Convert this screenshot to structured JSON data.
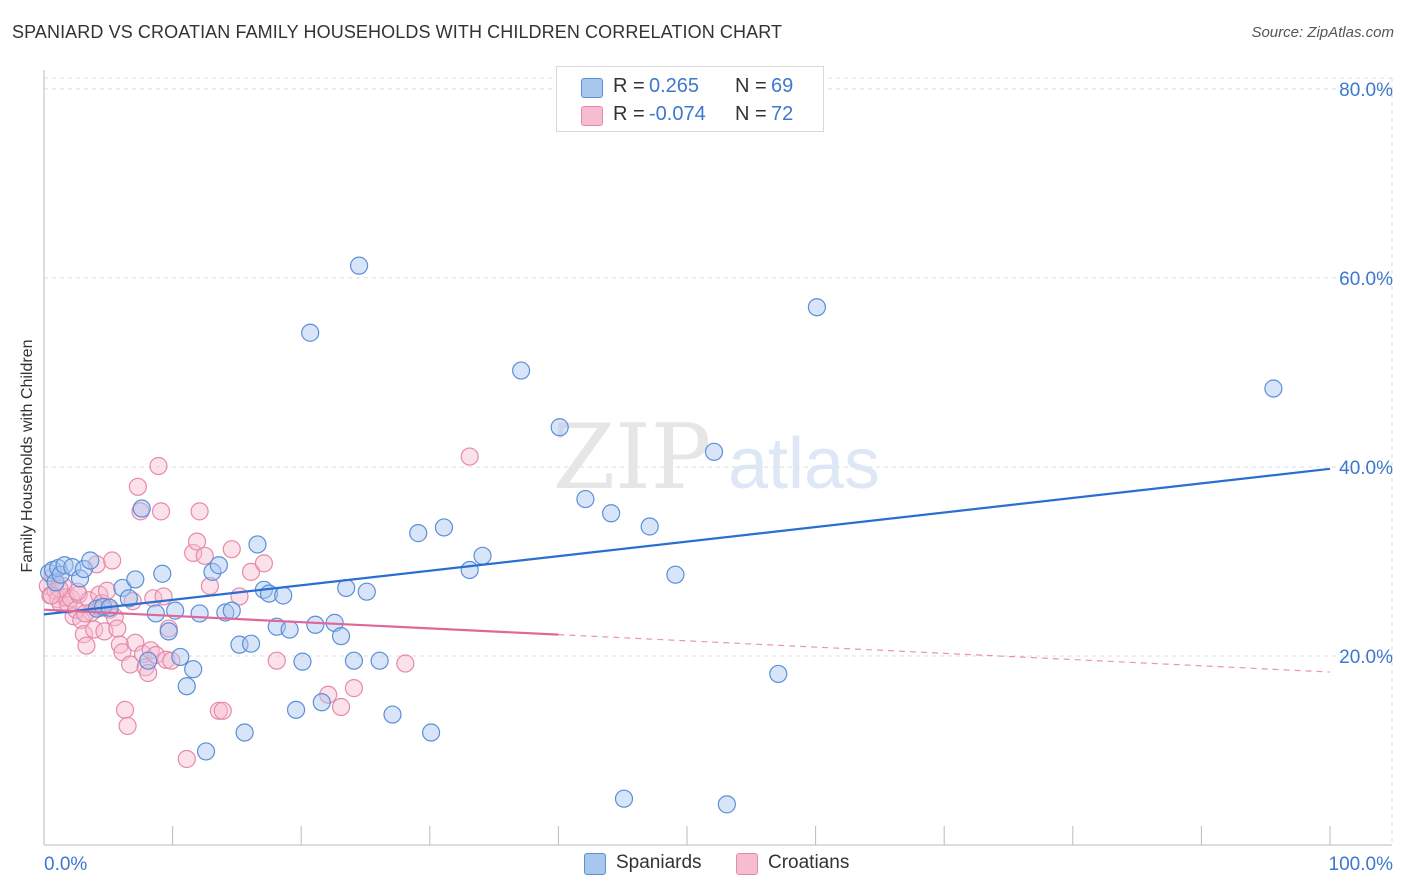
{
  "title": "SPANIARD VS CROATIAN FAMILY HOUSEHOLDS WITH CHILDREN CORRELATION CHART",
  "source": "Source: ZipAtlas.com",
  "watermark": {
    "zip": "ZIP",
    "atlas": "atlas"
  },
  "colors": {
    "blue_fill": "#a9c6ef",
    "blue_stroke": "#5b8fd8",
    "blue_line": "#2a6fd0",
    "pink_fill": "#f6bdd0",
    "pink_stroke": "#e68aac",
    "pink_line": "#e0679a",
    "axis_text": "#3c78d0",
    "grid": "#dddddd"
  },
  "legend_top": [
    {
      "r_label": "R =",
      "r_value": "0.265",
      "n_label": "N =",
      "n_value": "69"
    },
    {
      "r_label": "R =",
      "r_value": "-0.074",
      "n_label": "N =",
      "n_value": "72"
    }
  ],
  "legend_bottom": [
    "Spaniards",
    "Croatians"
  ],
  "chart_data": {
    "type": "scatter",
    "title": "SPANIARD VS CROATIAN FAMILY HOUSEHOLDS WITH CHILDREN CORRELATION CHART",
    "xlabel": "",
    "ylabel": "Family Households with Children",
    "xlim": [
      0,
      100
    ],
    "ylim": [
      0,
      82
    ],
    "x_tick_labels": [
      "0.0%",
      "100.0%"
    ],
    "y_ticks": [
      20,
      40,
      60,
      80
    ],
    "y_tick_labels": [
      "20.0%",
      "40.0%",
      "60.0%",
      "80.0%"
    ],
    "grid": true,
    "series": [
      {
        "name": "Spaniards",
        "R": 0.265,
        "N": 69,
        "trend": {
          "x0": 0,
          "y0": 24.4,
          "x1": 100,
          "y1": 39.8,
          "solid_to": 100
        },
        "points": [
          [
            0.4,
            28.8
          ],
          [
            0.7,
            29.1
          ],
          [
            0.9,
            27.8
          ],
          [
            1.1,
            29.3
          ],
          [
            1.3,
            28.6
          ],
          [
            1.6,
            29.6
          ],
          [
            2.2,
            29.4
          ],
          [
            2.8,
            28.2
          ],
          [
            3.1,
            29.2
          ],
          [
            3.6,
            30.1
          ],
          [
            4.1,
            25.0
          ],
          [
            4.6,
            25.2
          ],
          [
            5.1,
            25.1
          ],
          [
            6.1,
            27.2
          ],
          [
            6.6,
            26.1
          ],
          [
            7.1,
            28.1
          ],
          [
            7.6,
            35.6
          ],
          [
            8.1,
            19.5
          ],
          [
            8.7,
            24.5
          ],
          [
            9.2,
            28.7
          ],
          [
            9.7,
            22.6
          ],
          [
            10.2,
            24.8
          ],
          [
            10.6,
            19.9
          ],
          [
            11.1,
            16.8
          ],
          [
            11.6,
            18.6
          ],
          [
            12.1,
            24.5
          ],
          [
            12.6,
            9.9
          ],
          [
            13.1,
            28.9
          ],
          [
            13.6,
            29.6
          ],
          [
            14.1,
            24.6
          ],
          [
            14.6,
            24.8
          ],
          [
            15.2,
            21.2
          ],
          [
            15.6,
            11.9
          ],
          [
            16.1,
            21.3
          ],
          [
            16.6,
            31.8
          ],
          [
            17.1,
            27.0
          ],
          [
            17.5,
            26.6
          ],
          [
            18.1,
            23.1
          ],
          [
            18.6,
            26.4
          ],
          [
            19.1,
            22.8
          ],
          [
            19.6,
            14.3
          ],
          [
            20.1,
            19.4
          ],
          [
            20.7,
            54.2
          ],
          [
            21.1,
            23.3
          ],
          [
            21.6,
            15.1
          ],
          [
            22.6,
            23.5
          ],
          [
            23.1,
            22.1
          ],
          [
            23.5,
            27.2
          ],
          [
            24.1,
            19.5
          ],
          [
            24.5,
            61.3
          ],
          [
            25.1,
            26.8
          ],
          [
            26.1,
            19.5
          ],
          [
            27.1,
            13.8
          ],
          [
            29.1,
            33.0
          ],
          [
            30.1,
            11.9
          ],
          [
            31.1,
            33.6
          ],
          [
            33.1,
            29.1
          ],
          [
            34.1,
            30.6
          ],
          [
            37.1,
            50.2
          ],
          [
            40.1,
            44.2
          ],
          [
            42.1,
            36.6
          ],
          [
            44.1,
            35.1
          ],
          [
            45.1,
            4.9
          ],
          [
            47.1,
            33.7
          ],
          [
            49.1,
            28.6
          ],
          [
            52.1,
            41.6
          ],
          [
            53.1,
            4.3
          ],
          [
            57.1,
            18.1
          ],
          [
            60.1,
            56.9
          ],
          [
            95.6,
            48.3
          ]
        ]
      },
      {
        "name": "Croatians",
        "R": -0.074,
        "N": 72,
        "trend": {
          "x0": 0,
          "y0": 24.9,
          "x1": 100,
          "y1": 18.3,
          "solid_to": 40
        },
        "points": [
          [
            0.3,
            27.4
          ],
          [
            0.5,
            26.4
          ],
          [
            0.7,
            28.4
          ],
          [
            0.9,
            26.9
          ],
          [
            1.1,
            26.0
          ],
          [
            1.3,
            25.5
          ],
          [
            1.5,
            27.4
          ],
          [
            1.7,
            26.2
          ],
          [
            1.9,
            25.4
          ],
          [
            2.1,
            26.1
          ],
          [
            2.3,
            24.2
          ],
          [
            2.5,
            24.9
          ],
          [
            2.7,
            26.5
          ],
          [
            2.9,
            23.8
          ],
          [
            3.1,
            22.3
          ],
          [
            3.3,
            21.1
          ],
          [
            3.5,
            25.9
          ],
          [
            3.7,
            24.6
          ],
          [
            3.9,
            22.8
          ],
          [
            4.1,
            29.7
          ],
          [
            4.3,
            26.5
          ],
          [
            4.5,
            25.6
          ],
          [
            4.7,
            22.6
          ],
          [
            4.9,
            26.9
          ],
          [
            5.1,
            24.9
          ],
          [
            5.3,
            30.1
          ],
          [
            5.5,
            24.1
          ],
          [
            5.7,
            22.9
          ],
          [
            5.9,
            21.2
          ],
          [
            6.1,
            20.4
          ],
          [
            6.3,
            14.3
          ],
          [
            6.5,
            12.6
          ],
          [
            6.7,
            19.1
          ],
          [
            6.9,
            25.8
          ],
          [
            7.1,
            21.4
          ],
          [
            7.3,
            37.9
          ],
          [
            7.5,
            35.3
          ],
          [
            7.7,
            20.2
          ],
          [
            7.9,
            18.8
          ],
          [
            8.1,
            18.2
          ],
          [
            8.3,
            20.6
          ],
          [
            8.5,
            26.1
          ],
          [
            8.7,
            20.1
          ],
          [
            8.9,
            40.1
          ],
          [
            9.1,
            35.3
          ],
          [
            9.3,
            26.3
          ],
          [
            9.5,
            19.6
          ],
          [
            9.7,
            22.9
          ],
          [
            9.9,
            19.5
          ],
          [
            11.1,
            9.1
          ],
          [
            11.6,
            30.9
          ],
          [
            11.9,
            32.1
          ],
          [
            12.1,
            35.3
          ],
          [
            12.5,
            30.6
          ],
          [
            12.9,
            27.4
          ],
          [
            13.6,
            14.2
          ],
          [
            13.9,
            14.2
          ],
          [
            14.6,
            31.3
          ],
          [
            15.2,
            26.3
          ],
          [
            16.1,
            28.9
          ],
          [
            17.1,
            29.8
          ],
          [
            18.1,
            19.5
          ],
          [
            22.1,
            15.9
          ],
          [
            23.1,
            14.6
          ],
          [
            24.1,
            16.6
          ],
          [
            28.1,
            19.2
          ],
          [
            33.1,
            41.1
          ],
          [
            3.2,
            24.5
          ],
          [
            1.2,
            27.1
          ],
          [
            0.6,
            26.4
          ],
          [
            2.6,
            26.8
          ],
          [
            4.4,
            25.1
          ]
        ]
      }
    ]
  }
}
